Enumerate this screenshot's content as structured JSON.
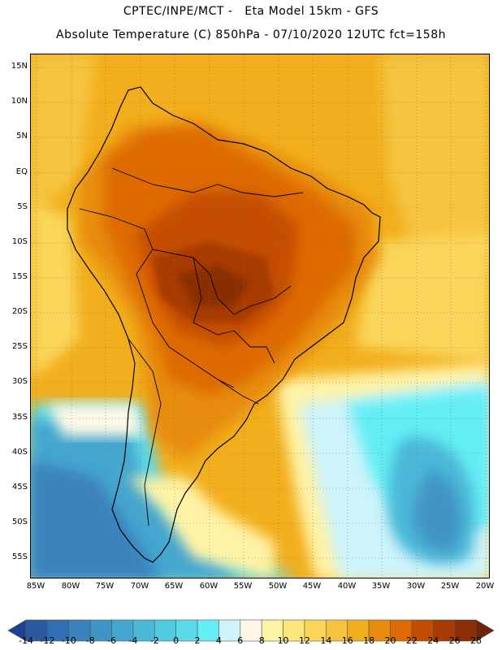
{
  "header": {
    "line1": "CPTEC/INPE/MCT -   Eta Model 15km - GFS",
    "line2": "Absolute Temperature (C) 850hPa - 07/10/2020 12UTC fct=158h"
  },
  "map": {
    "lat_labels": [
      "15N",
      "10N",
      "5N",
      "EQ",
      "5S",
      "10S",
      "15S",
      "20S",
      "25S",
      "30S",
      "35S",
      "40S",
      "45S",
      "50S",
      "55S"
    ],
    "lon_labels": [
      "85W",
      "80W",
      "75W",
      "70W",
      "65W",
      "60W",
      "55W",
      "50W",
      "45W",
      "40W",
      "35W",
      "30W",
      "25W",
      "20W"
    ]
  },
  "colorbar": {
    "labels": [
      "-14",
      "-12",
      "-10",
      "-8",
      "-6",
      "-4",
      "-2",
      "0",
      "2",
      "4",
      "6",
      "8",
      "10",
      "12",
      "14",
      "16",
      "18",
      "20",
      "22",
      "24",
      "26",
      "28"
    ],
    "colors": [
      "#1f3f8f",
      "#2b5aa0",
      "#336eb2",
      "#3a82bd",
      "#3f94c6",
      "#45a6cf",
      "#4cb8d8",
      "#52cadf",
      "#5bdbe8",
      "#64eef4",
      "#cdf3fb",
      "#fff8e6",
      "#fff3a6",
      "#fde67a",
      "#fad65a",
      "#f6c440",
      "#f2ae1c",
      "#e88c10",
      "#de6b06",
      "#c44d04",
      "#a83a04",
      "#8a2e06",
      "#6e2408"
    ]
  }
}
